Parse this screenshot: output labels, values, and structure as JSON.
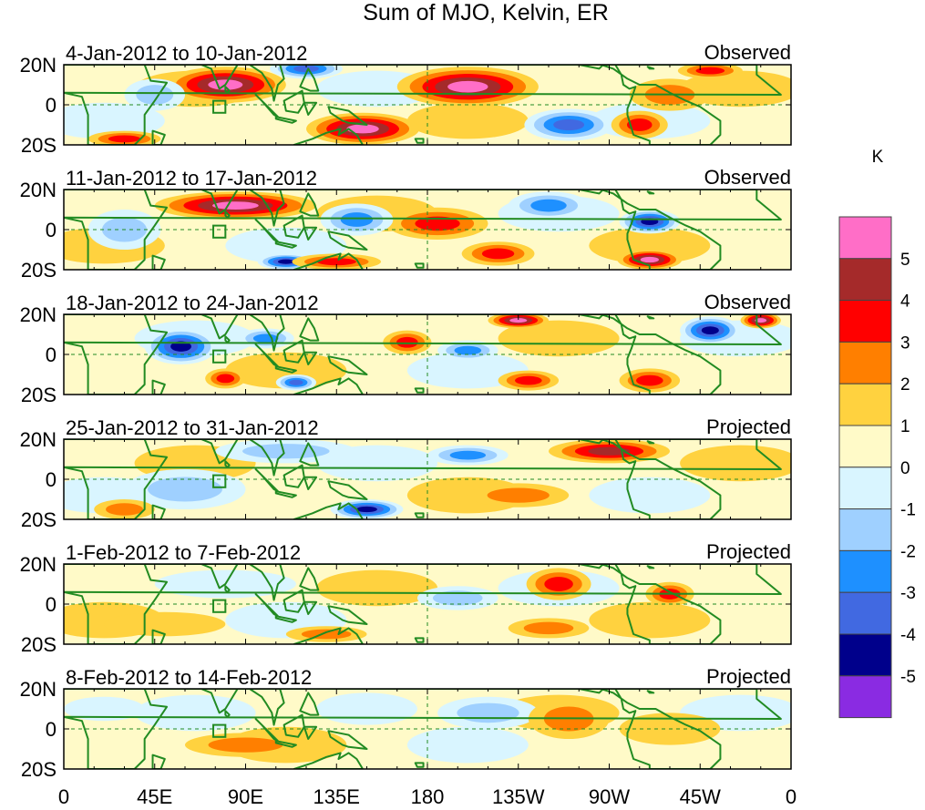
{
  "title": "Sum of MJO, Kelvin, ER",
  "colorbar": {
    "unit": "K",
    "labels": [
      "5",
      "4",
      "3",
      "2",
      "1",
      "0",
      "-1",
      "-2",
      "-3",
      "-4",
      "-5"
    ],
    "colors": [
      "#ff6ec7",
      "#a52a2a",
      "#ff0000",
      "#ff7f00",
      "#ffd23f",
      "#fffac8",
      "#d9f5ff",
      "#9fd0ff",
      "#1e90ff",
      "#4169e1",
      "#00008b",
      "#8a2be2"
    ]
  },
  "y_ticks": [
    "20N",
    "0",
    "20S"
  ],
  "x_ticks": [
    "0",
    "45E",
    "90E",
    "135E",
    "180",
    "135W",
    "90W",
    "45W",
    "0"
  ],
  "panels": [
    {
      "dates": "4-Jan-2012 to 10-Jan-2012",
      "status": "Observed"
    },
    {
      "dates": "11-Jan-2012 to 17-Jan-2012",
      "status": "Observed"
    },
    {
      "dates": "18-Jan-2012 to 24-Jan-2012",
      "status": "Observed"
    },
    {
      "dates": "25-Jan-2012 to 31-Jan-2012",
      "status": "Projected"
    },
    {
      "dates": "1-Feb-2012 to 7-Feb-2012",
      "status": "Projected"
    },
    {
      "dates": "8-Feb-2012 to 14-Feb-2012",
      "status": "Projected"
    }
  ],
  "anomalies": [
    [
      {
        "lon": 80,
        "lat": 10,
        "level": 5,
        "rx": 30,
        "ry": 9
      },
      {
        "lon": 200,
        "lat": 9,
        "level": 5,
        "rx": 35,
        "ry": 10
      },
      {
        "lon": 148,
        "lat": -12,
        "level": 5,
        "rx": 28,
        "ry": 8
      },
      {
        "lon": 120,
        "lat": 18,
        "level": -4,
        "rx": 18,
        "ry": 5
      },
      {
        "lon": 250,
        "lat": -10,
        "level": -4,
        "rx": 22,
        "ry": 8
      },
      {
        "lon": 285,
        "lat": -10,
        "level": 3,
        "rx": 14,
        "ry": 7
      },
      {
        "lon": 320,
        "lat": 17,
        "level": 3,
        "rx": 16,
        "ry": 4
      },
      {
        "lon": 30,
        "lat": -17,
        "level": 3,
        "rx": 18,
        "ry": 4
      },
      {
        "lon": 45,
        "lat": 5,
        "level": -2,
        "rx": 15,
        "ry": 8
      },
      {
        "lon": 300,
        "lat": 5,
        "level": 2,
        "rx": 20,
        "ry": 8
      }
    ],
    [
      {
        "lon": 85,
        "lat": 12,
        "level": 5,
        "rx": 40,
        "ry": 7
      },
      {
        "lon": 185,
        "lat": 3,
        "level": 3,
        "rx": 25,
        "ry": 8
      },
      {
        "lon": 290,
        "lat": 4,
        "level": -5,
        "rx": 15,
        "ry": 6
      },
      {
        "lon": 290,
        "lat": -15,
        "level": 5,
        "rx": 16,
        "ry": 5
      },
      {
        "lon": 110,
        "lat": -16,
        "level": -5,
        "rx": 14,
        "ry": 4
      },
      {
        "lon": 240,
        "lat": 12,
        "level": -3,
        "rx": 20,
        "ry": 7
      },
      {
        "lon": 145,
        "lat": 5,
        "level": -3,
        "rx": 18,
        "ry": 8
      },
      {
        "lon": 215,
        "lat": -12,
        "level": 3,
        "rx": 18,
        "ry": 6
      },
      {
        "lon": 135,
        "lat": -16,
        "level": 3,
        "rx": 22,
        "ry": 4
      },
      {
        "lon": 30,
        "lat": 0,
        "level": -2,
        "rx": 18,
        "ry": 10
      }
    ],
    [
      {
        "lon": 58,
        "lat": 4,
        "level": -5,
        "rx": 18,
        "ry": 9
      },
      {
        "lon": 320,
        "lat": 12,
        "level": -5,
        "rx": 15,
        "ry": 7
      },
      {
        "lon": 225,
        "lat": 17,
        "level": 5,
        "rx": 15,
        "ry": 4
      },
      {
        "lon": 345,
        "lat": 17,
        "level": 5,
        "rx": 10,
        "ry": 4
      },
      {
        "lon": 230,
        "lat": -13,
        "level": 3,
        "rx": 15,
        "ry": 5
      },
      {
        "lon": 290,
        "lat": -13,
        "level": 3,
        "rx": 15,
        "ry": 6
      },
      {
        "lon": 170,
        "lat": 6,
        "level": 3,
        "rx": 12,
        "ry": 6
      },
      {
        "lon": 100,
        "lat": 8,
        "level": -3,
        "rx": 14,
        "ry": 5
      },
      {
        "lon": 115,
        "lat": -14,
        "level": -4,
        "rx": 10,
        "ry": 4
      },
      {
        "lon": 200,
        "lat": 2,
        "level": -3,
        "rx": 15,
        "ry": 5
      },
      {
        "lon": 80,
        "lat": -12,
        "level": 3,
        "rx": 10,
        "ry": 5
      }
    ],
    [
      {
        "lon": 270,
        "lat": 14,
        "level": 4,
        "rx": 30,
        "ry": 6
      },
      {
        "lon": 150,
        "lat": -15,
        "level": -5,
        "rx": 18,
        "ry": 5
      },
      {
        "lon": 110,
        "lat": 14,
        "level": -2,
        "rx": 35,
        "ry": 6
      },
      {
        "lon": 60,
        "lat": -5,
        "level": -2,
        "rx": 30,
        "ry": 10
      },
      {
        "lon": 225,
        "lat": -8,
        "level": 2,
        "rx": 25,
        "ry": 6
      },
      {
        "lon": 200,
        "lat": 12,
        "level": -3,
        "rx": 20,
        "ry": 5
      },
      {
        "lon": 30,
        "lat": -15,
        "level": 2,
        "rx": 15,
        "ry": 5
      }
    ],
    [
      {
        "lon": 245,
        "lat": 10,
        "level": 3,
        "rx": 16,
        "ry": 8
      },
      {
        "lon": 300,
        "lat": 5,
        "level": 3,
        "rx": 12,
        "ry": 6
      },
      {
        "lon": 195,
        "lat": 3,
        "level": -2,
        "rx": 20,
        "ry": 6
      },
      {
        "lon": 130,
        "lat": -15,
        "level": 2,
        "rx": 20,
        "ry": 4
      },
      {
        "lon": 240,
        "lat": -12,
        "level": 2,
        "rx": 20,
        "ry": 5
      },
      {
        "lon": 80,
        "lat": 10,
        "level": -1,
        "rx": 35,
        "ry": 7
      },
      {
        "lon": 50,
        "lat": -10,
        "level": 1,
        "rx": 30,
        "ry": 6
      }
    ],
    [
      {
        "lon": 210,
        "lat": 8,
        "level": -2,
        "rx": 25,
        "ry": 8
      },
      {
        "lon": 250,
        "lat": 5,
        "level": 2,
        "rx": 20,
        "ry": 10
      },
      {
        "lon": 90,
        "lat": -8,
        "level": 2,
        "rx": 30,
        "ry": 6
      },
      {
        "lon": 150,
        "lat": 10,
        "level": -1,
        "rx": 25,
        "ry": 8
      },
      {
        "lon": 20,
        "lat": 10,
        "level": -1,
        "rx": 20,
        "ry": 6
      },
      {
        "lon": 300,
        "lat": 0,
        "level": 1,
        "rx": 25,
        "ry": 8
      }
    ]
  ]
}
